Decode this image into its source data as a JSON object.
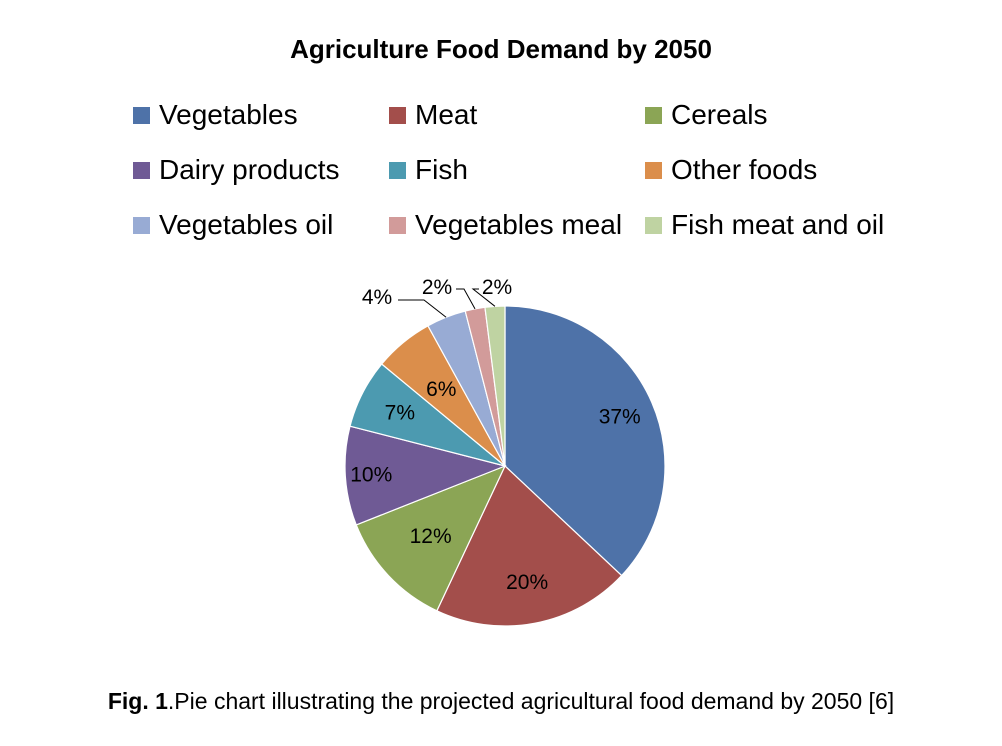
{
  "chart_data": {
    "type": "pie",
    "title": "Agriculture Food Demand by 2050",
    "categories": [
      "Vegetables",
      "Meat",
      "Cereals",
      "Dairy products",
      "Fish",
      "Other foods",
      "Vegetables oil",
      "Vegetables meal",
      "Fish meat and oil"
    ],
    "values": [
      37,
      20,
      12,
      10,
      7,
      6,
      4,
      2,
      2
    ],
    "value_labels": [
      "37%",
      "20%",
      "12%",
      "10%",
      "7%",
      "6%",
      "4%",
      "2%",
      "2%"
    ],
    "colors": [
      "#4E72A8",
      "#A34E4B",
      "#8BA555",
      "#6F5A95",
      "#4C9AB0",
      "#DB8E4B",
      "#98ABD4",
      "#D29B9A",
      "#BFD3A2"
    ],
    "legend_position": "top",
    "start_angle": "12 o'clock",
    "direction": "clockwise"
  },
  "caption": {
    "prefix": "Fig. 1",
    "text": ".Pie chart illustrating the projected agricultural food demand by 2050 [6]"
  }
}
